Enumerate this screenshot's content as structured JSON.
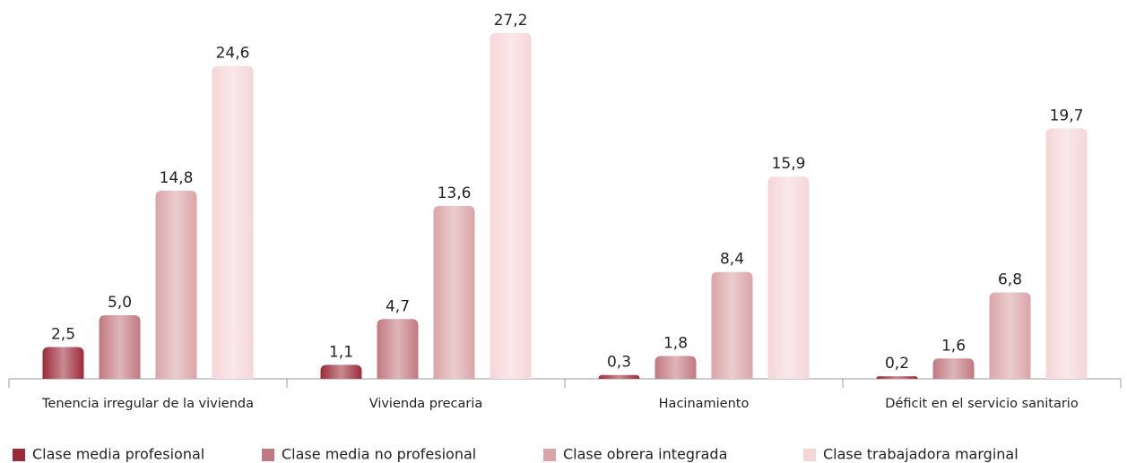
{
  "chart_data": {
    "type": "bar",
    "categories": [
      "Tenencia irregular de la vivienda",
      "Vivienda precaria",
      "Hacinamiento",
      "Déficit en el servicio sanitario"
    ],
    "series": [
      {
        "name": "Clase media profesional",
        "color": "#9b2b38",
        "values": [
          2.5,
          1.1,
          0.3,
          0.2
        ],
        "value_labels": [
          "2,5",
          "1,1",
          "0,3",
          "0,2"
        ]
      },
      {
        "name": "Clase media no profesional",
        "color": "#c27880",
        "values": [
          5.0,
          4.7,
          1.8,
          1.6
        ],
        "value_labels": [
          "5,0",
          "4,7",
          "1,8",
          "1,6"
        ]
      },
      {
        "name": "Clase obrera integrada",
        "color": "#dba4a8",
        "values": [
          14.8,
          13.6,
          8.4,
          6.8
        ],
        "value_labels": [
          "14,8",
          "13,6",
          "8,4",
          "6,8"
        ]
      },
      {
        "name": "Clase trabajadora marginal",
        "color": "#f5d6d8",
        "values": [
          24.6,
          27.2,
          15.9,
          19.7
        ],
        "value_labels": [
          "24,6",
          "27,2",
          "15,9",
          "19,7"
        ]
      }
    ],
    "legend": "bottom"
  }
}
